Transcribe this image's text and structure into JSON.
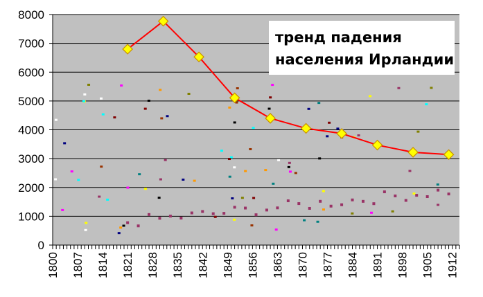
{
  "chart_data": {
    "type": "line",
    "title": "",
    "xlabel": "",
    "ylabel": "",
    "annotation_lines": [
      "тренд падения",
      "населения Ирландии"
    ],
    "ylim": [
      0,
      8000
    ],
    "xlim": [
      1800,
      1914
    ],
    "y_ticks": [
      "0",
      "1000",
      "2000",
      "3000",
      "4000",
      "5000",
      "6000",
      "7000",
      "8000"
    ],
    "x_ticks": [
      "1800",
      "1807",
      "1814",
      "1821",
      "1828",
      "1835",
      "1842",
      "1849",
      "1856",
      "1863",
      "1870",
      "1877",
      "1884",
      "1891",
      "1898",
      "1905",
      "1912"
    ],
    "grid": true,
    "legend": "none",
    "colors": {
      "plot_bg": "#c0c0c0",
      "trend_line": "#ff0000",
      "marker_fill": "#ffff00",
      "marker_stroke": "#c89000",
      "gridline": "#000000"
    },
    "series": [
      {
        "x": [
          1821,
          1831,
          1841,
          1851,
          1861,
          1871,
          1881,
          1891,
          1901,
          1911
        ],
        "values": [
          6800,
          7770,
          6530,
          5110,
          4400,
          4050,
          3870,
          3470,
          3220,
          3140
        ]
      }
    ]
  }
}
